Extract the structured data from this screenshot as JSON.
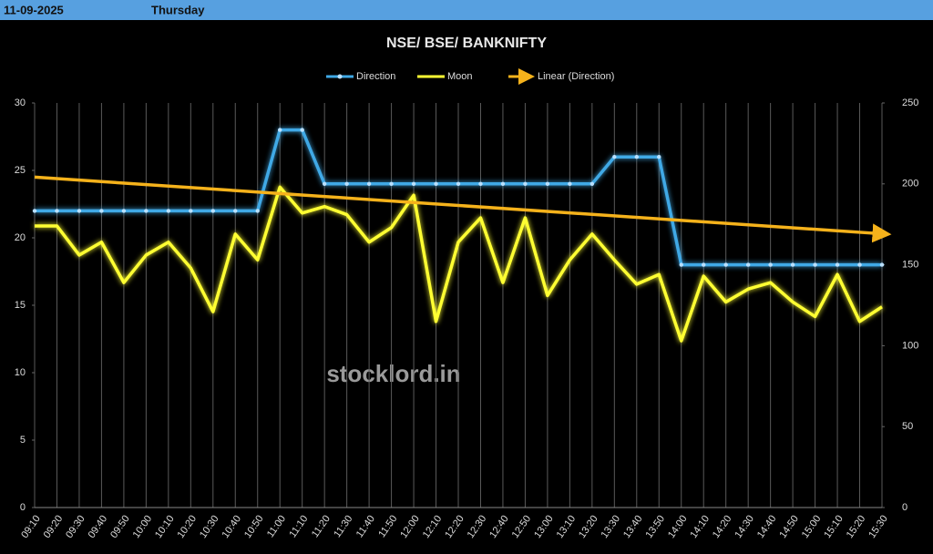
{
  "header": {
    "date": "11-09-2025",
    "day": "Thursday"
  },
  "chart_data": {
    "type": "line",
    "title": "NSE/ BSE/ BANKNIFTY",
    "annotation": "stocklord.in",
    "categories": [
      "09:10",
      "09:20",
      "09:30",
      "09:40",
      "09:50",
      "10:00",
      "10:10",
      "10:20",
      "10:30",
      "10:40",
      "10:50",
      "11:00",
      "11:10",
      "11:20",
      "11:30",
      "11:40",
      "11:50",
      "12:00",
      "12:10",
      "12:20",
      "12:30",
      "12:40",
      "12:50",
      "13:00",
      "13:10",
      "13:20",
      "13:30",
      "13:40",
      "13:50",
      "14:00",
      "14:10",
      "14:20",
      "14:30",
      "14:40",
      "14:50",
      "15:00",
      "15:10",
      "15:20",
      "15:30"
    ],
    "series": [
      {
        "name": "Direction",
        "color": "#3fa9e6",
        "axis": "y",
        "values": [
          22,
          22,
          22,
          22,
          22,
          22,
          22,
          22,
          22,
          22,
          22,
          28,
          28,
          24,
          24,
          24,
          24,
          24,
          24,
          24,
          24,
          24,
          24,
          24,
          24,
          24,
          26,
          26,
          26,
          18,
          18,
          18,
          18,
          18,
          18,
          18,
          18,
          18,
          18
        ]
      },
      {
        "name": "Moon",
        "color": "#ffff33",
        "axis": "y2",
        "values": [
          174,
          174,
          156,
          164,
          139,
          156,
          164,
          148,
          121,
          169,
          153,
          198,
          182,
          186,
          181,
          164,
          173,
          193,
          115,
          164,
          179,
          139,
          179,
          131,
          153,
          169,
          153,
          138,
          144,
          103,
          143,
          127,
          135,
          139,
          127,
          118,
          144,
          115,
          124
        ]
      }
    ],
    "trendline": {
      "name": "Linear (Direction)",
      "color": "#f5b21b",
      "values": [
        24.5,
        20.3
      ]
    },
    "ylim": [
      0,
      30
    ],
    "yticks": [
      0,
      5,
      10,
      15,
      20,
      25,
      30
    ],
    "y2lim": [
      0,
      250
    ],
    "y2ticks": [
      0,
      50,
      100,
      150,
      200,
      250
    ],
    "grid": true
  }
}
